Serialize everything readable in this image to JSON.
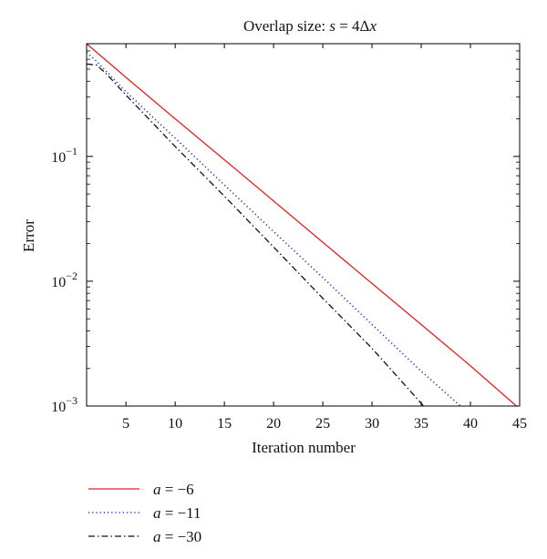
{
  "chart_data": {
    "type": "line",
    "title_prefix": "Overlap size: ",
    "title_var": "s",
    "title_rest": " = 4Δ",
    "title_var2": "x",
    "xlabel": "Iteration number",
    "ylabel": "Error",
    "xlim": [
      1,
      45
    ],
    "ylim": [
      0.001,
      0.8
    ],
    "yscale": "log",
    "grid": false,
    "legend_position": "below-left",
    "xticks": [
      5,
      10,
      15,
      20,
      25,
      30,
      35,
      40,
      45
    ],
    "yticks": [
      {
        "value": 0.1,
        "base": "10",
        "exp": "−1"
      },
      {
        "value": 0.01,
        "base": "10",
        "exp": "−2"
      },
      {
        "value": 0.001,
        "base": "10",
        "exp": "−3"
      }
    ],
    "series": [
      {
        "name_var": "a",
        "name_rest": " = −6",
        "color": "#e02020",
        "dash": "solid",
        "x": [
          1,
          5,
          10,
          15,
          20,
          25,
          30,
          35,
          40,
          45
        ],
        "y": [
          0.8,
          0.43,
          0.2,
          0.094,
          0.044,
          0.0205,
          0.0096,
          0.0045,
          0.0021,
          0.00095
        ]
      },
      {
        "name_var": "a",
        "name_rest": " = −11",
        "color": "#2a2ad0",
        "dash": "dotted",
        "x": [
          1,
          2,
          5,
          10,
          15,
          20,
          25,
          30,
          35,
          40
        ],
        "y": [
          0.68,
          0.58,
          0.33,
          0.14,
          0.059,
          0.025,
          0.0107,
          0.0045,
          0.0019,
          0.00085
        ]
      },
      {
        "name_var": "a",
        "name_rest": " = −30",
        "color": "#111111",
        "dash": "dashdot",
        "x": [
          1,
          2,
          3,
          5,
          10,
          15,
          20,
          25,
          30,
          35.5
        ],
        "y": [
          0.55,
          0.54,
          0.46,
          0.31,
          0.12,
          0.048,
          0.0188,
          0.0073,
          0.0029,
          0.00095
        ]
      }
    ]
  }
}
